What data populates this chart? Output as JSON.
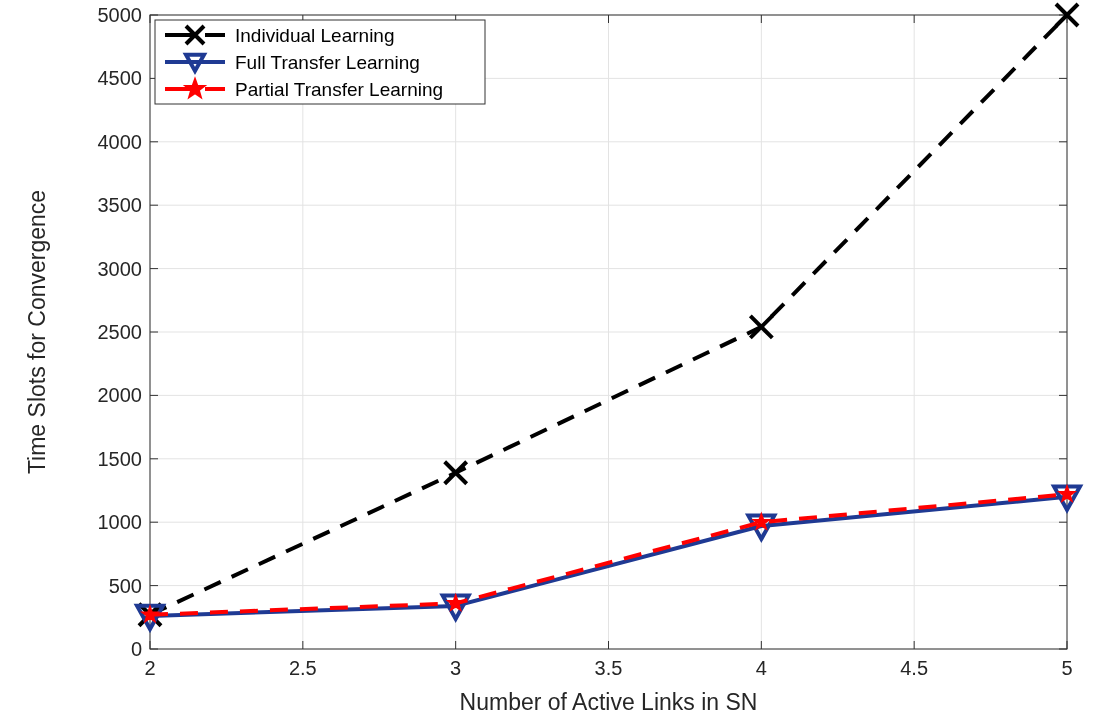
{
  "chart_data": {
    "type": "line",
    "xlabel": "Number of Active Links in SN",
    "ylabel": "Time Slots for Convergence",
    "x": [
      2,
      3,
      4,
      5
    ],
    "series": [
      {
        "name": "Individual Learning",
        "color": "#000000",
        "values": [
          270,
          1390,
          2540,
          5000
        ],
        "marker": "cross",
        "line_style": "dashed"
      },
      {
        "name": "Full Transfer Learning",
        "color": "#1f3a93",
        "values": [
          260,
          340,
          970,
          1200
        ],
        "marker": "triangle",
        "line_style": "solid"
      },
      {
        "name": "Partial Transfer Learning",
        "color": "#ff0000",
        "values": [
          270,
          360,
          1000,
          1220
        ],
        "marker": "star",
        "line_style": "dashed"
      }
    ],
    "xlim": [
      2,
      5
    ],
    "xticks": [
      2,
      2.5,
      3,
      3.5,
      4,
      4.5,
      5
    ],
    "ylim": [
      0,
      5000
    ],
    "yticks": [
      0,
      500,
      1000,
      1500,
      2000,
      2500,
      3000,
      3500,
      4000,
      4500,
      5000
    ],
    "grid": true,
    "legend": "top left"
  }
}
